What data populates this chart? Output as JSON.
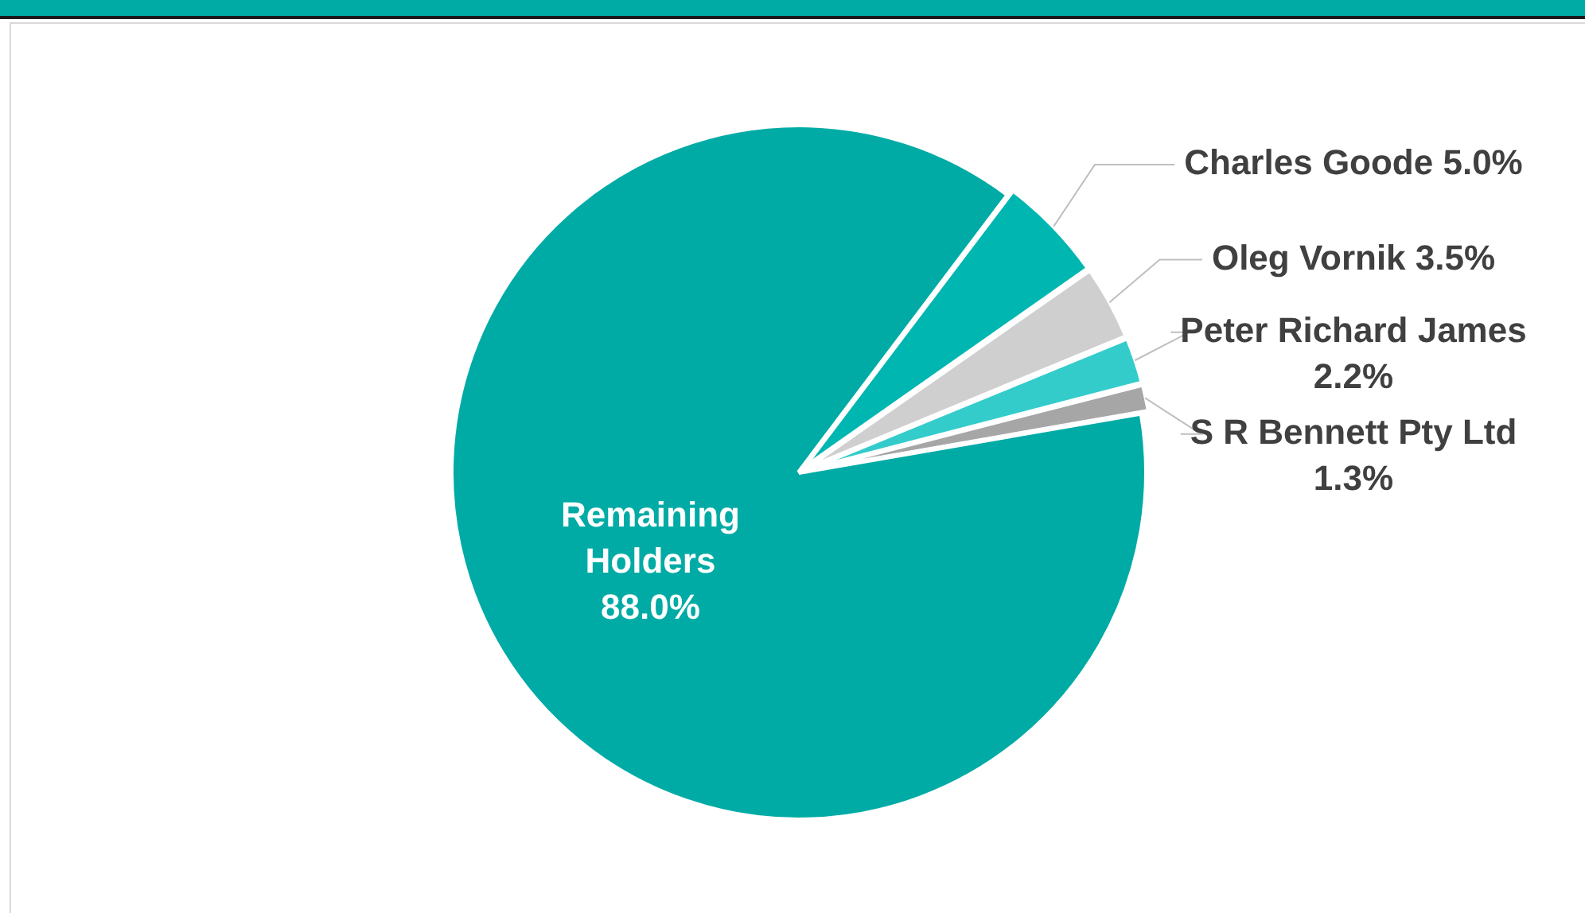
{
  "chart_data": {
    "type": "pie",
    "categories": [
      "Charles Goode",
      "Oleg Vornik",
      "Peter Richard James",
      "S R Bennett Pty Ltd",
      "Remaining Holders"
    ],
    "values": [
      5.0,
      3.5,
      2.2,
      1.3,
      88.0
    ],
    "value_labels": [
      "5.0%",
      "3.5%",
      "2.2%",
      "1.3%",
      "88.0%"
    ],
    "colors": [
      "#00b6b1",
      "#d0cfd0",
      "#33cccb",
      "#a6a6a6",
      "#00aba5"
    ],
    "legend": false
  }
}
